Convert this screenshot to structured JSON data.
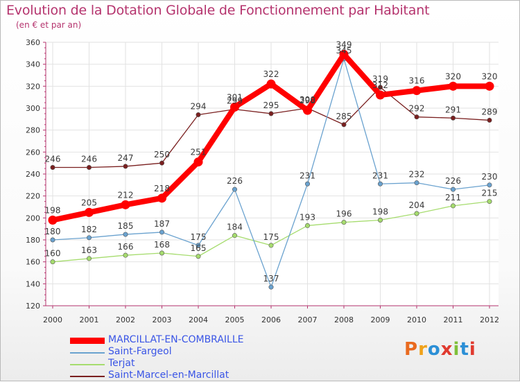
{
  "title": "Evolution de la Dotation Globale de Fonctionnement par Habitant",
  "subtitle": "(en € et par an)",
  "brand": {
    "text": "Proxiti",
    "letter_colors": [
      "#e96a1f",
      "#f0a21a",
      "#2b8fd6",
      "#e03a2f",
      "#7fbf3a",
      "#2b8fd6",
      "#e03a2f"
    ]
  },
  "chart_data": {
    "type": "line",
    "x": [
      "2000",
      "2001",
      "2002",
      "2003",
      "2004",
      "2005",
      "2006",
      "2007",
      "2008",
      "2009",
      "2010",
      "2011",
      "2012"
    ],
    "ylim": [
      120,
      360
    ],
    "yticks": [
      "120",
      "140",
      "160",
      "180",
      "200",
      "220",
      "240",
      "260",
      "280",
      "300",
      "320",
      "340",
      "360"
    ],
    "grid": true,
    "legend_position": "bottom",
    "series": [
      {
        "name": "Saint-Marcel-en-Marcillat",
        "color": "#7a1f1f",
        "values": [
          246,
          246,
          247,
          250,
          294,
          299,
          295,
          300,
          285,
          319,
          292,
          291,
          289
        ],
        "labels": [
          "246",
          "246",
          "247",
          "250",
          "294",
          "299",
          "295",
          "300",
          "285",
          "319",
          "292",
          "291",
          "289"
        ]
      },
      {
        "name": "Terjat",
        "color": "#a6dc6e",
        "values": [
          160,
          163,
          166,
          168,
          165,
          184,
          175,
          193,
          196,
          198,
          204,
          211,
          215
        ],
        "labels": [
          "160",
          "163",
          "166",
          "168",
          "165",
          "184",
          "175",
          "193",
          "196",
          "198",
          "204",
          "211",
          "215"
        ]
      },
      {
        "name": "Saint-Fargeol",
        "color": "#6aa2cf",
        "values": [
          180,
          182,
          185,
          187,
          175,
          226,
          137,
          231,
          345,
          231,
          232,
          226,
          230
        ],
        "labels": [
          "180",
          "182",
          "185",
          "187",
          "175",
          "226",
          "137",
          "231",
          "345",
          "231",
          "232",
          "226",
          "230"
        ]
      },
      {
        "name": "MARCILLAT-EN-COMBRAILLE",
        "color": "#ff0000",
        "values": [
          198,
          205,
          212,
          218,
          251,
          301,
          322,
          298,
          349,
          312,
          316,
          320,
          320
        ],
        "labels": [
          "198",
          "205",
          "212",
          "218",
          "251",
          "301",
          "322",
          "298",
          "349",
          "312",
          "316",
          "320",
          "320"
        ]
      }
    ],
    "legend_order": [
      "MARCILLAT-EN-COMBRAILLE",
      "Saint-Fargeol",
      "Terjat",
      "Saint-Marcel-en-Marcillat"
    ]
  }
}
